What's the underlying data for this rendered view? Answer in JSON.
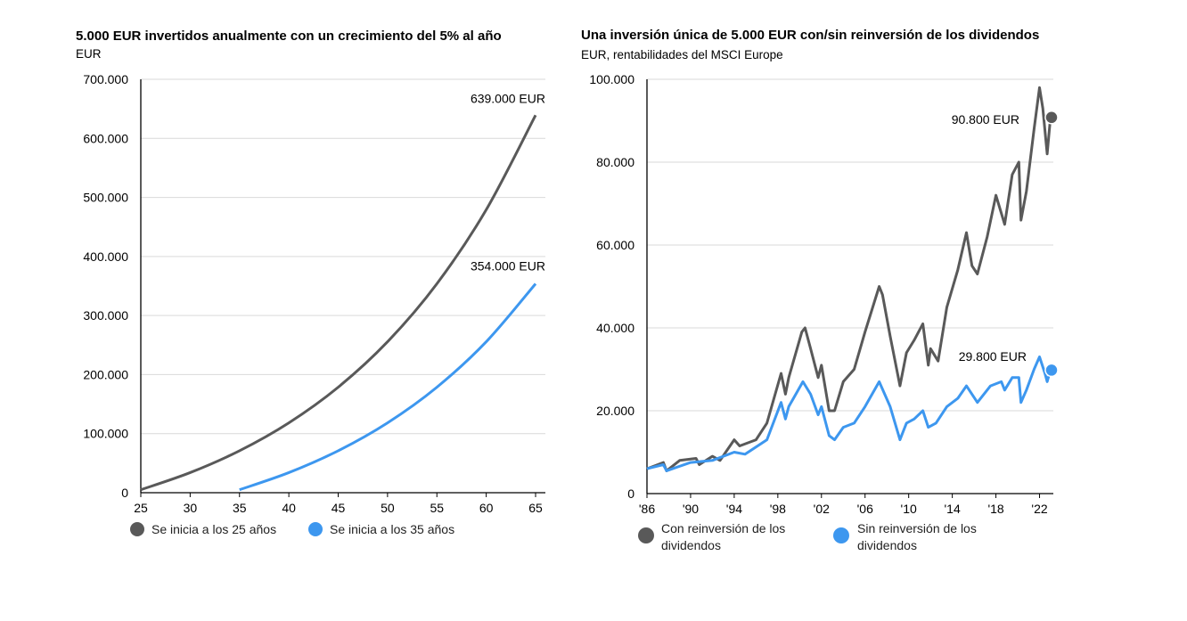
{
  "colors": {
    "gray": "#595959",
    "blue": "#3d97ef",
    "grid": "#d9d9d9"
  },
  "chart_data": [
    {
      "type": "line",
      "title": "5.000 EUR invertidos anualmente con un crecimiento del 5% al año",
      "ylabel": "EUR",
      "xlabel": "",
      "xlim": [
        25,
        65
      ],
      "ylim": [
        0,
        700000
      ],
      "x_ticks": [
        25,
        30,
        35,
        40,
        45,
        50,
        55,
        60,
        65
      ],
      "x_tick_labels": [
        "25",
        "30",
        "35",
        "40",
        "45",
        "50",
        "55",
        "60",
        "65"
      ],
      "y_ticks": [
        0,
        100000,
        200000,
        300000,
        400000,
        500000,
        600000,
        700000
      ],
      "y_tick_labels": [
        "0",
        "100.000",
        "200.000",
        "300.000",
        "400.000",
        "500.000",
        "600.000",
        "700.000"
      ],
      "grid": true,
      "legend_position": "bottom",
      "series": [
        {
          "name": "Se inicia a los 25 años",
          "color_key": "gray",
          "x": [
            25,
            30,
            35,
            40,
            45,
            50,
            55,
            60,
            65
          ],
          "values": [
            5000,
            34010,
            71034,
            118287,
            178596,
            255567,
            353803,
            479182,
            639199
          ],
          "end_label": "639.000 EUR"
        },
        {
          "name": "Se inicia a los 35 años",
          "color_key": "blue",
          "x": [
            35,
            40,
            45,
            50,
            55,
            60,
            65
          ],
          "values": [
            5000,
            34010,
            71034,
            118287,
            178596,
            255567,
            353803
          ],
          "end_label": "354.000 EUR"
        }
      ]
    },
    {
      "type": "line",
      "title": "Una inversión única de 5.000 EUR con/sin reinversión de los dividendos",
      "ylabel": "EUR, rentabilidades del MSCI Europe",
      "xlabel": "",
      "xlim": [
        1986,
        2024
      ],
      "ylim": [
        0,
        100000
      ],
      "x_ticks": [
        1986,
        1990,
        1994,
        1998,
        2002,
        2006,
        2010,
        2014,
        2018,
        2022
      ],
      "x_tick_labels": [
        "'86",
        "'90",
        "'94",
        "'98",
        "'02",
        "'06",
        "'10",
        "'14",
        "'18",
        "'22"
      ],
      "y_ticks": [
        0,
        20000,
        40000,
        60000,
        80000,
        100000
      ],
      "y_tick_labels": [
        "0",
        "20.000",
        "40.000",
        "60.000",
        "80.000",
        "100.000"
      ],
      "grid": true,
      "legend_position": "bottom",
      "series": [
        {
          "name": "Con reinversión de los dividendos",
          "color_key": "gray",
          "x": [
            1986,
            1987.5,
            1987.8,
            1989,
            1990.5,
            1990.8,
            1992,
            1992.7,
            1994,
            1994.5,
            1996,
            1997,
            1998.3,
            1998.7,
            1999,
            2000.2,
            2000.5,
            2001,
            2001.7,
            2002,
            2002.7,
            2003.2,
            2004,
            2005,
            2006,
            2007.3,
            2007.6,
            2008.3,
            2009.2,
            2009.8,
            2010.5,
            2011.3,
            2011.8,
            2012,
            2012.7,
            2013.5,
            2014.5,
            2015.3,
            2015.8,
            2016.3,
            2017.2,
            2018,
            2018.8,
            2019.5,
            2020.1,
            2020.3,
            2020.8,
            2021.5,
            2022,
            2022.3,
            2022.7,
            2023
          ],
          "values": [
            6000,
            7500,
            5500,
            8000,
            8500,
            7000,
            9000,
            8000,
            13000,
            11500,
            13000,
            17000,
            29000,
            24000,
            28000,
            39000,
            40000,
            35000,
            28000,
            31000,
            20000,
            20000,
            27000,
            30000,
            39000,
            50000,
            48000,
            38000,
            26000,
            34000,
            37000,
            41000,
            31000,
            35000,
            32000,
            45000,
            54000,
            63000,
            55000,
            53000,
            62000,
            72000,
            65000,
            77000,
            80000,
            66000,
            73000,
            88000,
            98000,
            93000,
            82000,
            90800
          ],
          "end_label": "90.800 EUR",
          "end_value": 90800
        },
        {
          "name": "Sin reinversión de los dividendos",
          "color_key": "blue",
          "x": [
            1986,
            1987.5,
            1987.8,
            1990,
            1992,
            1994,
            1995,
            1997,
            1998.3,
            1998.7,
            1999,
            2000.3,
            2001,
            2001.7,
            2002,
            2002.7,
            2003.2,
            2004,
            2005,
            2006,
            2007.3,
            2008.3,
            2009.2,
            2009.8,
            2010.5,
            2011.3,
            2011.8,
            2012.5,
            2013.5,
            2014.5,
            2015.3,
            2016.3,
            2017.5,
            2018.5,
            2018.8,
            2019.5,
            2020.1,
            2020.3,
            2020.8,
            2021.5,
            2022,
            2022.5,
            2022.7,
            2023
          ],
          "values": [
            6000,
            7000,
            5500,
            7500,
            8000,
            10000,
            9500,
            13000,
            22000,
            18000,
            21000,
            27000,
            24000,
            19000,
            21000,
            14000,
            13000,
            16000,
            17000,
            21000,
            27000,
            21000,
            13000,
            17000,
            18000,
            20000,
            16000,
            17000,
            21000,
            23000,
            26000,
            22000,
            26000,
            27000,
            25000,
            28000,
            28000,
            22000,
            25000,
            30000,
            33000,
            29000,
            27000,
            29800
          ],
          "end_label": "29.800 EUR",
          "end_value": 29800
        }
      ]
    }
  ]
}
